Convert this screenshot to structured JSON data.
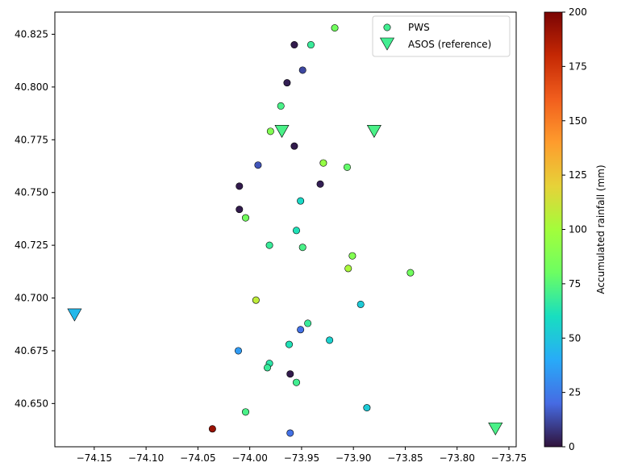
{
  "chart_data": {
    "type": "scatter",
    "title": "",
    "xlabel": "",
    "ylabel": "",
    "xlim": [
      -74.188,
      -73.743
    ],
    "ylim": [
      40.6295,
      40.8355
    ],
    "xticks": [
      -74.15,
      -74.1,
      -74.05,
      -74.0,
      -73.95,
      -73.9,
      -73.85,
      -73.8,
      -73.75
    ],
    "xtick_labels": [
      "−74.15",
      "−74.10",
      "−74.05",
      "−74.00",
      "−73.95",
      "−73.90",
      "−73.85",
      "−73.80",
      "−73.75"
    ],
    "yticks": [
      40.65,
      40.675,
      40.7,
      40.725,
      40.75,
      40.775,
      40.8,
      40.825
    ],
    "ytick_labels": [
      "40.650",
      "40.675",
      "40.700",
      "40.725",
      "40.750",
      "40.775",
      "40.800",
      "40.825"
    ],
    "grid": false,
    "legend_position": "top-right",
    "colormap": "turbo",
    "colorbar": {
      "label": "Accumulated rainfall (mm)",
      "range": [
        0,
        200
      ],
      "ticks": [
        0,
        25,
        50,
        75,
        100,
        125,
        150,
        175,
        200
      ],
      "tick_labels": [
        "0",
        "25",
        "50",
        "75",
        "100",
        "125",
        "150",
        "175",
        "200"
      ]
    },
    "series": [
      {
        "name": "PWS",
        "marker": "circle",
        "points": [
          {
            "x": -73.918,
            "y": 40.828,
            "v": 82
          },
          {
            "x": -73.957,
            "y": 40.82,
            "v": 2
          },
          {
            "x": -73.941,
            "y": 40.82,
            "v": 68
          },
          {
            "x": -73.949,
            "y": 40.808,
            "v": 12
          },
          {
            "x": -73.964,
            "y": 40.802,
            "v": 3
          },
          {
            "x": -73.97,
            "y": 40.791,
            "v": 72
          },
          {
            "x": -73.98,
            "y": 40.779,
            "v": 88
          },
          {
            "x": -73.957,
            "y": 40.772,
            "v": 2
          },
          {
            "x": -73.929,
            "y": 40.764,
            "v": 95
          },
          {
            "x": -73.906,
            "y": 40.762,
            "v": 78
          },
          {
            "x": -73.992,
            "y": 40.763,
            "v": 15
          },
          {
            "x": -74.01,
            "y": 40.753,
            "v": 2
          },
          {
            "x": -73.932,
            "y": 40.754,
            "v": 3
          },
          {
            "x": -73.951,
            "y": 40.746,
            "v": 58
          },
          {
            "x": -74.01,
            "y": 40.742,
            "v": 2
          },
          {
            "x": -74.004,
            "y": 40.738,
            "v": 82
          },
          {
            "x": -73.955,
            "y": 40.732,
            "v": 62
          },
          {
            "x": -73.981,
            "y": 40.725,
            "v": 68
          },
          {
            "x": -73.949,
            "y": 40.724,
            "v": 72
          },
          {
            "x": -73.901,
            "y": 40.72,
            "v": 88
          },
          {
            "x": -73.905,
            "y": 40.714,
            "v": 102
          },
          {
            "x": -73.845,
            "y": 40.712,
            "v": 82
          },
          {
            "x": -73.994,
            "y": 40.699,
            "v": 108
          },
          {
            "x": -73.893,
            "y": 40.697,
            "v": 52
          },
          {
            "x": -73.944,
            "y": 40.688,
            "v": 68
          },
          {
            "x": -73.951,
            "y": 40.685,
            "v": 22
          },
          {
            "x": -73.923,
            "y": 40.68,
            "v": 55
          },
          {
            "x": -73.962,
            "y": 40.678,
            "v": 62
          },
          {
            "x": -74.011,
            "y": 40.675,
            "v": 35
          },
          {
            "x": -73.981,
            "y": 40.669,
            "v": 65
          },
          {
            "x": -73.983,
            "y": 40.667,
            "v": 68
          },
          {
            "x": -73.961,
            "y": 40.664,
            "v": 2
          },
          {
            "x": -73.955,
            "y": 40.66,
            "v": 70
          },
          {
            "x": -73.887,
            "y": 40.648,
            "v": 52
          },
          {
            "x": -74.004,
            "y": 40.646,
            "v": 72
          },
          {
            "x": -74.036,
            "y": 40.638,
            "v": 192
          },
          {
            "x": -73.961,
            "y": 40.636,
            "v": 22
          }
        ]
      },
      {
        "name": "ASOS (reference)",
        "marker": "triangle-down",
        "points": [
          {
            "x": -73.969,
            "y": 40.779,
            "v": 72
          },
          {
            "x": -73.88,
            "y": 40.779,
            "v": 72
          },
          {
            "x": -74.169,
            "y": 40.692,
            "v": 45
          },
          {
            "x": -73.763,
            "y": 40.638,
            "v": 72
          }
        ]
      }
    ]
  }
}
